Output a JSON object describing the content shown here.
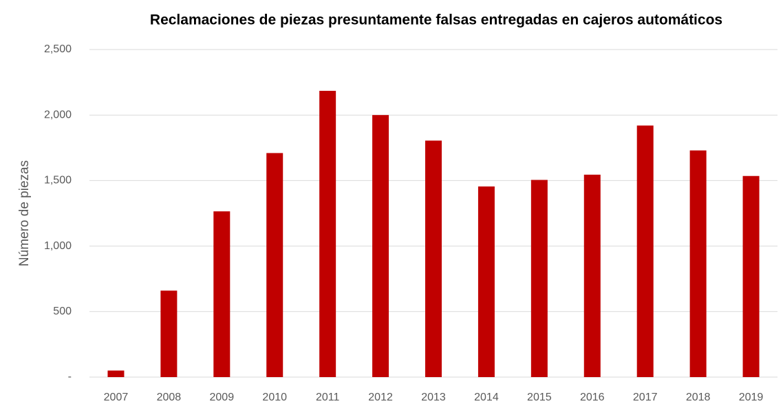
{
  "chart_data": {
    "type": "bar",
    "title": "Reclamaciones de piezas presuntamente falsas entregadas en cajeros automáticos",
    "y_label": "Número de piezas",
    "categories": [
      "2007",
      "2008",
      "2009",
      "2010",
      "2011",
      "2012",
      "2013",
      "2014",
      "2015",
      "2016",
      "2017",
      "2018",
      "2019"
    ],
    "values": [
      50,
      660,
      1265,
      1710,
      2185,
      2000,
      1805,
      1455,
      1505,
      1545,
      1920,
      1730,
      1535
    ],
    "color": "#c00000",
    "ylim": [
      0,
      2500
    ],
    "yticks": [
      {
        "value": 0,
        "label": "-"
      },
      500,
      {
        "value": 1000,
        "label": "1,000"
      },
      {
        "value": 1500,
        "label": "1,500"
      },
      {
        "value": 2000,
        "label": "2,000"
      },
      {
        "value": 2500,
        "label": "2,500"
      }
    ],
    "grid": true
  }
}
